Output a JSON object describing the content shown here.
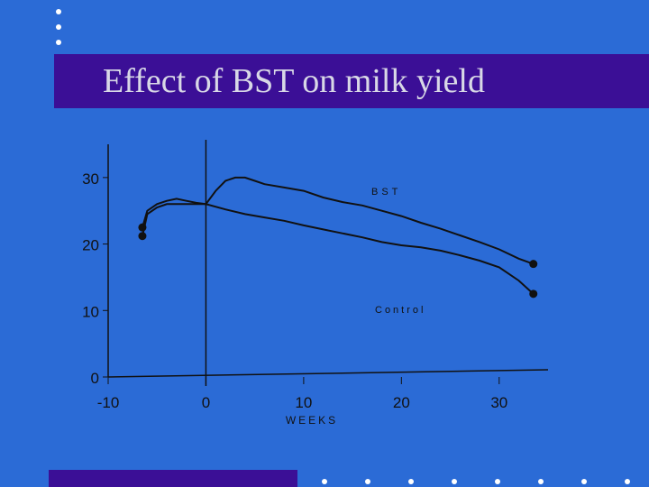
{
  "slide": {
    "title": "Effect of BST on milk yield",
    "colors": {
      "background": "#2b6bd6",
      "band": "#3b0f96",
      "ink": "#111111",
      "title_text": "#d8d8e6"
    }
  },
  "chart_data": {
    "type": "line",
    "title": "",
    "xlabel": "WEEKS",
    "ylabel": "",
    "xlim": [
      -10,
      35
    ],
    "ylim": [
      0,
      35
    ],
    "x_ticks": [
      -10,
      0,
      10,
      20,
      30
    ],
    "y_ticks": [
      0,
      10,
      20,
      30
    ],
    "marker_line_x": 0,
    "grid": false,
    "series": [
      {
        "name": "BST",
        "x": [
          -6.5,
          -6,
          -5,
          -4,
          -3,
          -2,
          -1,
          0,
          1,
          2,
          3,
          4,
          5,
          6,
          8,
          10,
          12,
          14,
          16,
          18,
          20,
          22,
          24,
          26,
          28,
          30,
          32,
          33.5
        ],
        "y": [
          22.5,
          25,
          26,
          26.5,
          26.8,
          26.5,
          26.2,
          26,
          28,
          29.5,
          30,
          30,
          29.5,
          29,
          28.5,
          28,
          27,
          26.3,
          25.8,
          25,
          24.2,
          23.2,
          22.3,
          21.3,
          20.3,
          19.2,
          17.8,
          17
        ]
      },
      {
        "name": "Control",
        "x": [
          -6.5,
          -6,
          -5,
          -4,
          -3,
          -2,
          -1,
          0,
          2,
          4,
          6,
          8,
          10,
          12,
          14,
          16,
          18,
          20,
          22,
          24,
          26,
          28,
          30,
          32,
          33.5
        ],
        "y": [
          21.2,
          24.5,
          25.5,
          26,
          26,
          26,
          26,
          26,
          25.2,
          24.5,
          24,
          23.5,
          22.8,
          22.2,
          21.6,
          21,
          20.3,
          19.8,
          19.5,
          19,
          18.3,
          17.5,
          16.5,
          14.5,
          12.5
        ]
      }
    ],
    "annotations": [
      {
        "text": "BST",
        "near_series": "BST"
      },
      {
        "text": "Control",
        "near_series": "Control"
      }
    ]
  }
}
